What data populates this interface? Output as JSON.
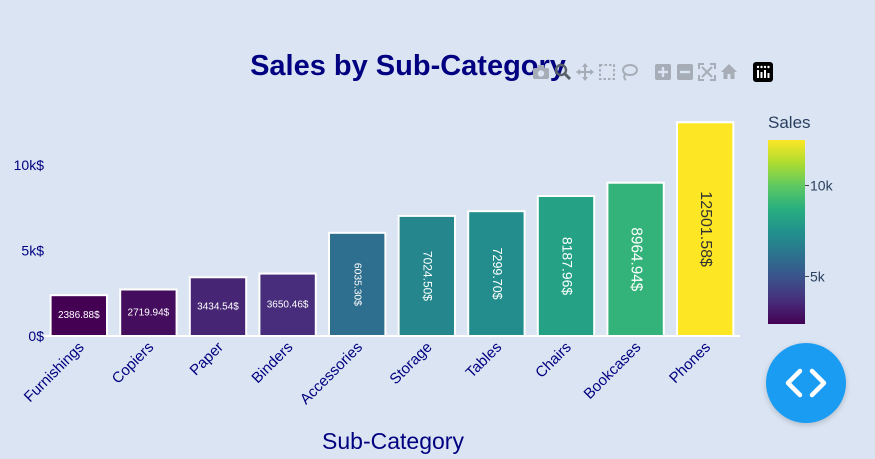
{
  "chart_data": {
    "type": "bar",
    "title": "Sales by Sub-Category",
    "xlabel": "Sub-Category",
    "ylabel": "",
    "categories": [
      "Furnishings",
      "Copiers",
      "Paper",
      "Binders",
      "Accessories",
      "Storage",
      "Tables",
      "Chairs",
      "Bookcases",
      "Phones"
    ],
    "values": [
      2386.88,
      2719.94,
      3434.54,
      3650.46,
      6035.3,
      7024.5,
      7299.7,
      8187.96,
      8964.94,
      12501.58
    ],
    "data_labels": [
      "2386.88$",
      "2719.94$",
      "3434.54$",
      "3650.46$",
      "6035.30$",
      "7024.50$",
      "7299.70$",
      "8187.96$",
      "8964.94$",
      "12501.58$"
    ],
    "y_ticks": [
      0,
      5000,
      10000
    ],
    "y_tick_labels": [
      "0$",
      "5k$",
      "10k$"
    ],
    "ylim": [
      0,
      13160
    ],
    "colorscale": "viridis",
    "legend": {
      "title": "Sales",
      "tick_values": [
        5000,
        10000
      ],
      "tick_labels": [
        "5k",
        "10k"
      ],
      "range": [
        2386.88,
        12501.58
      ],
      "placement": "right"
    },
    "grid": false,
    "colors": {
      "title": "#000080",
      "axis_text": "#000080",
      "background": "#dae4f2",
      "bar_outline": "#ffffff"
    }
  },
  "modebar": {
    "icons": [
      "camera-icon",
      "zoom-icon",
      "pan-icon",
      "box-select-icon",
      "lasso-select-icon",
      "zoom-in-icon",
      "zoom-out-icon",
      "autoscale-icon",
      "reset-axes-icon",
      "plotly-logo-icon"
    ]
  },
  "code_button": {
    "icon": "code-icon",
    "color": "#1a9cf3"
  }
}
